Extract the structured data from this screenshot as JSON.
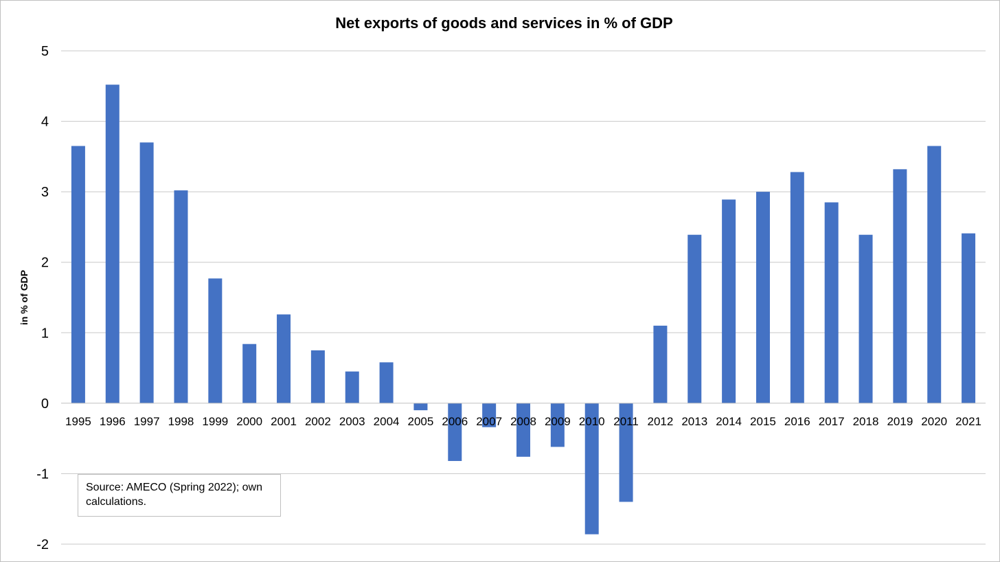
{
  "chart_data": {
    "type": "bar",
    "title": "Net exports of goods and services in % of GDP",
    "ylabel": "in % of GDP",
    "xlabel": "",
    "ylim": [
      -2,
      5
    ],
    "yticks": [
      5,
      4,
      3,
      2,
      1,
      0,
      -1,
      -2
    ],
    "grid": true,
    "bar_color": "#4472C4",
    "categories": [
      "1995",
      "1996",
      "1997",
      "1998",
      "1999",
      "2000",
      "2001",
      "2002",
      "2003",
      "2004",
      "2005",
      "2006",
      "2007",
      "2008",
      "2009",
      "2010",
      "2011",
      "2012",
      "2013",
      "2014",
      "2015",
      "2016",
      "2017",
      "2018",
      "2019",
      "2020",
      "2021"
    ],
    "values": [
      3.65,
      4.52,
      3.7,
      3.02,
      1.77,
      0.84,
      1.26,
      0.75,
      0.45,
      0.58,
      -0.1,
      -0.82,
      -0.34,
      -0.76,
      -0.62,
      -1.86,
      -1.4,
      1.1,
      2.39,
      2.89,
      3.0,
      3.28,
      2.85,
      2.39,
      3.32,
      3.65,
      2.41
    ]
  },
  "annotation": {
    "source_line1": "Source: AMECO (Spring 2022); own",
    "source_line2": "calculations."
  }
}
